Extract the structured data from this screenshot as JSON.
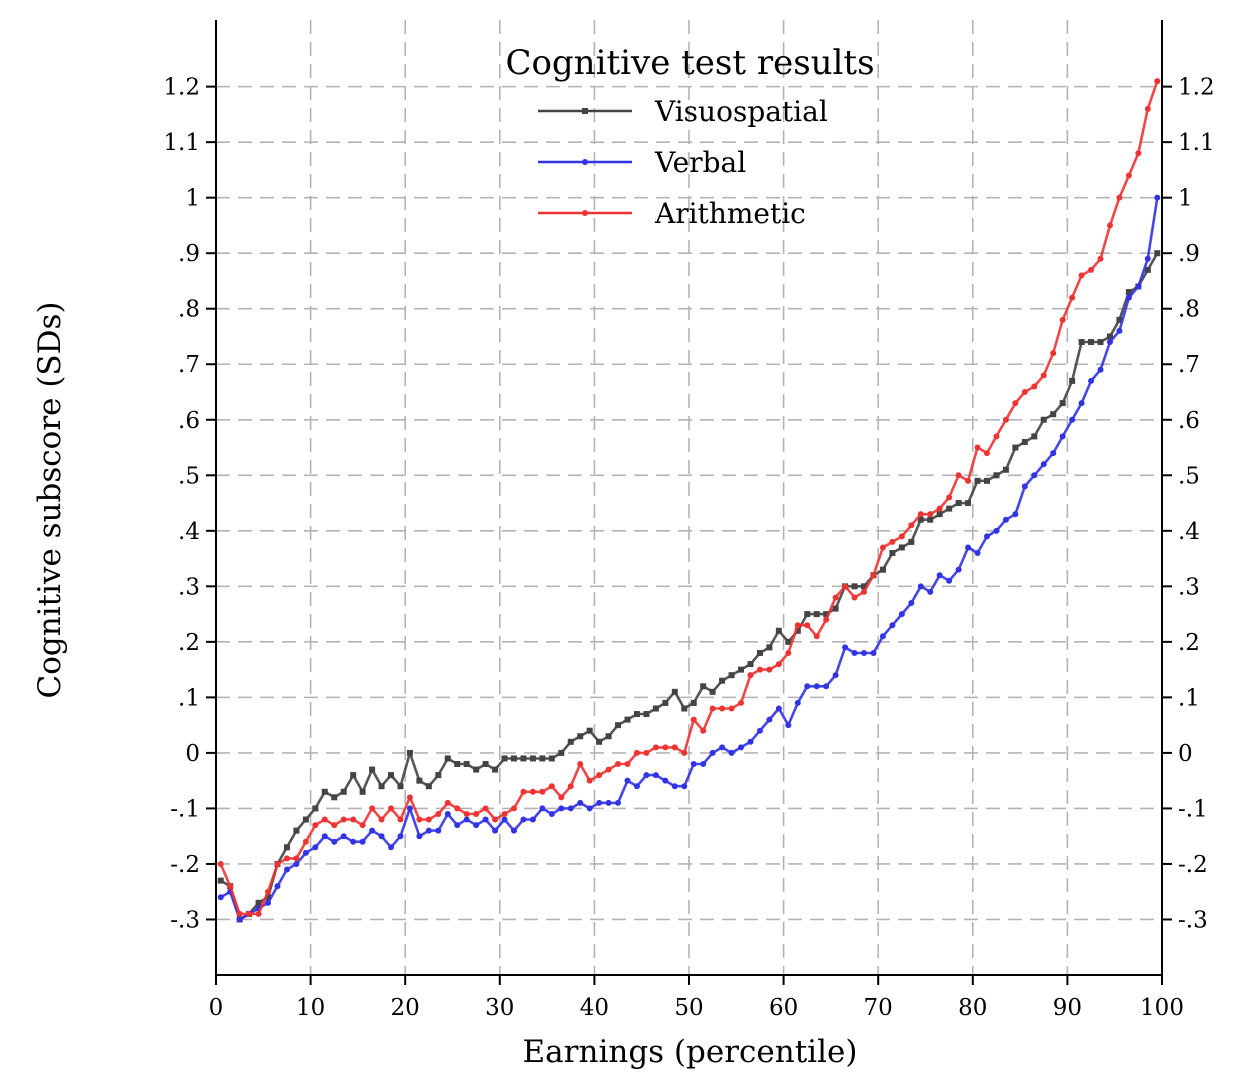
{
  "chart_data": {
    "type": "line",
    "xlabel": "Earnings (percentile)",
    "ylabel": "Cognitive subscore (SDs)",
    "xlim": [
      0,
      100
    ],
    "ylim": [
      -0.4,
      1.32
    ],
    "x_ticks": [
      0,
      10,
      20,
      30,
      40,
      50,
      60,
      70,
      80,
      90,
      100
    ],
    "x_tick_labels": [
      "0",
      "10",
      "20",
      "30",
      "40",
      "50",
      "60",
      "70",
      "80",
      "90",
      "100"
    ],
    "y_ticks": [
      -0.3,
      -0.2,
      -0.1,
      0,
      0.1,
      0.2,
      0.3,
      0.4,
      0.5,
      0.6,
      0.7,
      0.8,
      0.9,
      1,
      1.1,
      1.2
    ],
    "y_tick_labels": [
      "-.3",
      "-.2",
      "-.1",
      "0",
      ".1",
      ".2",
      ".3",
      ".4",
      ".5",
      ".6",
      ".7",
      ".8",
      ".9",
      "1",
      "1.1",
      "1.2"
    ],
    "grid": true,
    "legend_position": "top-center",
    "legend_title": "Cognitive test results",
    "series": [
      {
        "name": "Visuospatial",
        "color": "#444444",
        "marker": "square",
        "x": [
          0.5,
          1.5,
          2.5,
          3.5,
          4.5,
          5.5,
          6.5,
          7.5,
          8.5,
          9.5,
          10.5,
          11.5,
          12.5,
          13.5,
          14.5,
          15.5,
          16.5,
          17.5,
          18.5,
          19.5,
          20.5,
          21.5,
          22.5,
          23.5,
          24.5,
          25.5,
          26.5,
          27.5,
          28.5,
          29.5,
          30.5,
          31.5,
          32.5,
          33.5,
          34.5,
          35.5,
          36.5,
          37.5,
          38.5,
          39.5,
          40.5,
          41.5,
          42.5,
          43.5,
          44.5,
          45.5,
          46.5,
          47.5,
          48.5,
          49.5,
          50.5,
          51.5,
          52.5,
          53.5,
          54.5,
          55.5,
          56.5,
          57.5,
          58.5,
          59.5,
          60.5,
          61.5,
          62.5,
          63.5,
          64.5,
          65.5,
          66.5,
          67.5,
          68.5,
          69.5,
          70.5,
          71.5,
          72.5,
          73.5,
          74.5,
          75.5,
          76.5,
          77.5,
          78.5,
          79.5,
          80.5,
          81.5,
          82.5,
          83.5,
          84.5,
          85.5,
          86.5,
          87.5,
          88.5,
          89.5,
          90.5,
          91.5,
          92.5,
          93.5,
          94.5,
          95.5,
          96.5,
          97.5,
          98.5,
          99.5
        ],
        "values": [
          -0.23,
          -0.24,
          -0.3,
          -0.29,
          -0.27,
          -0.26,
          -0.2,
          -0.17,
          -0.14,
          -0.12,
          -0.1,
          -0.07,
          -0.08,
          -0.07,
          -0.04,
          -0.07,
          -0.03,
          -0.06,
          -0.04,
          -0.06,
          0.0,
          -0.05,
          -0.06,
          -0.04,
          -0.01,
          -0.02,
          -0.02,
          -0.03,
          -0.02,
          -0.03,
          -0.01,
          -0.01,
          -0.01,
          -0.01,
          -0.01,
          -0.01,
          0.0,
          0.02,
          0.03,
          0.04,
          0.02,
          0.03,
          0.05,
          0.06,
          0.07,
          0.07,
          0.08,
          0.09,
          0.11,
          0.08,
          0.09,
          0.12,
          0.11,
          0.13,
          0.14,
          0.15,
          0.16,
          0.18,
          0.19,
          0.22,
          0.2,
          0.22,
          0.25,
          0.25,
          0.25,
          0.26,
          0.3,
          0.3,
          0.3,
          0.32,
          0.33,
          0.36,
          0.37,
          0.38,
          0.42,
          0.42,
          0.43,
          0.44,
          0.45,
          0.45,
          0.49,
          0.49,
          0.5,
          0.51,
          0.55,
          0.56,
          0.57,
          0.6,
          0.61,
          0.63,
          0.67,
          0.74,
          0.74,
          0.74,
          0.75,
          0.78,
          0.83,
          0.84,
          0.87,
          0.9
        ]
      },
      {
        "name": "Verbal",
        "color": "#3333e6",
        "marker": "circle",
        "x": [
          0.5,
          1.5,
          2.5,
          3.5,
          4.5,
          5.5,
          6.5,
          7.5,
          8.5,
          9.5,
          10.5,
          11.5,
          12.5,
          13.5,
          14.5,
          15.5,
          16.5,
          17.5,
          18.5,
          19.5,
          20.5,
          21.5,
          22.5,
          23.5,
          24.5,
          25.5,
          26.5,
          27.5,
          28.5,
          29.5,
          30.5,
          31.5,
          32.5,
          33.5,
          34.5,
          35.5,
          36.5,
          37.5,
          38.5,
          39.5,
          40.5,
          41.5,
          42.5,
          43.5,
          44.5,
          45.5,
          46.5,
          47.5,
          48.5,
          49.5,
          50.5,
          51.5,
          52.5,
          53.5,
          54.5,
          55.5,
          56.5,
          57.5,
          58.5,
          59.5,
          60.5,
          61.5,
          62.5,
          63.5,
          64.5,
          65.5,
          66.5,
          67.5,
          68.5,
          69.5,
          70.5,
          71.5,
          72.5,
          73.5,
          74.5,
          75.5,
          76.5,
          77.5,
          78.5,
          79.5,
          80.5,
          81.5,
          82.5,
          83.5,
          84.5,
          85.5,
          86.5,
          87.5,
          88.5,
          89.5,
          90.5,
          91.5,
          92.5,
          93.5,
          94.5,
          95.5,
          96.5,
          97.5,
          98.5,
          99.5
        ],
        "values": [
          -0.26,
          -0.25,
          -0.3,
          -0.29,
          -0.28,
          -0.27,
          -0.24,
          -0.21,
          -0.2,
          -0.18,
          -0.17,
          -0.15,
          -0.16,
          -0.15,
          -0.16,
          -0.16,
          -0.14,
          -0.15,
          -0.17,
          -0.15,
          -0.1,
          -0.15,
          -0.14,
          -0.14,
          -0.11,
          -0.13,
          -0.12,
          -0.13,
          -0.12,
          -0.14,
          -0.12,
          -0.14,
          -0.12,
          -0.12,
          -0.1,
          -0.11,
          -0.1,
          -0.1,
          -0.09,
          -0.1,
          -0.09,
          -0.09,
          -0.09,
          -0.05,
          -0.06,
          -0.04,
          -0.04,
          -0.05,
          -0.06,
          -0.06,
          -0.02,
          -0.02,
          0.0,
          0.01,
          0.0,
          0.01,
          0.02,
          0.04,
          0.06,
          0.08,
          0.05,
          0.09,
          0.12,
          0.12,
          0.12,
          0.14,
          0.19,
          0.18,
          0.18,
          0.18,
          0.21,
          0.23,
          0.25,
          0.27,
          0.3,
          0.29,
          0.32,
          0.31,
          0.33,
          0.37,
          0.36,
          0.39,
          0.4,
          0.42,
          0.43,
          0.48,
          0.5,
          0.52,
          0.54,
          0.57,
          0.6,
          0.63,
          0.67,
          0.69,
          0.74,
          0.76,
          0.82,
          0.84,
          0.89,
          1.0
        ]
      },
      {
        "name": "Arithmetic",
        "color": "#ee3333",
        "marker": "circle",
        "x": [
          0.5,
          1.5,
          2.5,
          3.5,
          4.5,
          5.5,
          6.5,
          7.5,
          8.5,
          9.5,
          10.5,
          11.5,
          12.5,
          13.5,
          14.5,
          15.5,
          16.5,
          17.5,
          18.5,
          19.5,
          20.5,
          21.5,
          22.5,
          23.5,
          24.5,
          25.5,
          26.5,
          27.5,
          28.5,
          29.5,
          30.5,
          31.5,
          32.5,
          33.5,
          34.5,
          35.5,
          36.5,
          37.5,
          38.5,
          39.5,
          40.5,
          41.5,
          42.5,
          43.5,
          44.5,
          45.5,
          46.5,
          47.5,
          48.5,
          49.5,
          50.5,
          51.5,
          52.5,
          53.5,
          54.5,
          55.5,
          56.5,
          57.5,
          58.5,
          59.5,
          60.5,
          61.5,
          62.5,
          63.5,
          64.5,
          65.5,
          66.5,
          67.5,
          68.5,
          69.5,
          70.5,
          71.5,
          72.5,
          73.5,
          74.5,
          75.5,
          76.5,
          77.5,
          78.5,
          79.5,
          80.5,
          81.5,
          82.5,
          83.5,
          84.5,
          85.5,
          86.5,
          87.5,
          88.5,
          89.5,
          90.5,
          91.5,
          92.5,
          93.5,
          94.5,
          95.5,
          96.5,
          97.5,
          98.5,
          99.5
        ],
        "values": [
          -0.2,
          -0.24,
          -0.29,
          -0.29,
          -0.29,
          -0.25,
          -0.2,
          -0.19,
          -0.19,
          -0.16,
          -0.13,
          -0.12,
          -0.13,
          -0.12,
          -0.12,
          -0.13,
          -0.1,
          -0.12,
          -0.1,
          -0.12,
          -0.08,
          -0.12,
          -0.12,
          -0.11,
          -0.09,
          -0.1,
          -0.11,
          -0.11,
          -0.1,
          -0.12,
          -0.11,
          -0.1,
          -0.07,
          -0.07,
          -0.07,
          -0.06,
          -0.08,
          -0.06,
          -0.02,
          -0.05,
          -0.04,
          -0.03,
          -0.02,
          -0.02,
          0.0,
          0.0,
          0.01,
          0.01,
          0.01,
          0.0,
          0.06,
          0.04,
          0.08,
          0.08,
          0.08,
          0.09,
          0.14,
          0.15,
          0.15,
          0.16,
          0.18,
          0.23,
          0.23,
          0.21,
          0.24,
          0.28,
          0.3,
          0.28,
          0.29,
          0.32,
          0.37,
          0.38,
          0.39,
          0.41,
          0.43,
          0.43,
          0.44,
          0.46,
          0.5,
          0.49,
          0.55,
          0.54,
          0.57,
          0.6,
          0.63,
          0.65,
          0.66,
          0.68,
          0.72,
          0.78,
          0.82,
          0.86,
          0.87,
          0.89,
          0.95,
          1.0,
          1.04,
          1.08,
          1.16,
          1.21
        ]
      }
    ]
  }
}
